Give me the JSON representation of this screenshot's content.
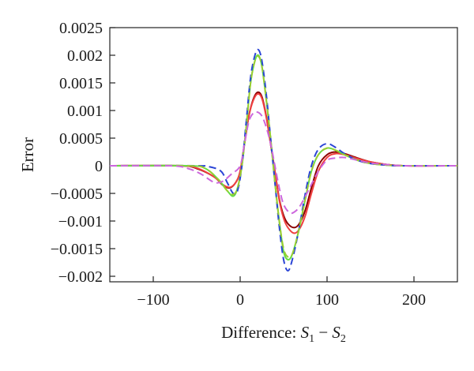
{
  "chart_data": {
    "type": "line",
    "title": "",
    "xlabel": {
      "prefix": "Difference: ",
      "var1": "S",
      "sub1": "1",
      "op": " − ",
      "var2": "S",
      "sub2": "2"
    },
    "ylabel": "Error",
    "xlim": [
      -150,
      250
    ],
    "ylim": [
      -0.0021,
      0.0025
    ],
    "x_ticks": [
      -100,
      0,
      100,
      200
    ],
    "x_tick_labels": [
      "−100",
      "0",
      "100",
      "200"
    ],
    "y_ticks": [
      0.0025,
      0.002,
      0.0015,
      0.001,
      0.0005,
      0,
      -0.0005,
      -0.001,
      -0.0015,
      -0.002
    ],
    "y_tick_labels": [
      "0.0025",
      "0.002",
      "0.0015",
      "0.001",
      "0.0005",
      "0",
      "−0.0005",
      "−0.001",
      "−0.0015",
      "−0.002"
    ],
    "grid": false,
    "series": [
      {
        "color": "#8b0000",
        "dash": "",
        "width": 2,
        "points": [
          [
            -150,
            0
          ],
          [
            -70,
            0
          ],
          [
            -50,
            -5e-05
          ],
          [
            -30,
            -0.0002
          ],
          [
            -20,
            -0.00035
          ],
          [
            -12,
            -0.0004
          ],
          [
            -5,
            -0.0003
          ],
          [
            0,
            -0.0001
          ],
          [
            5,
            0.0004
          ],
          [
            10,
            0.0009
          ],
          [
            15,
            0.0012
          ],
          [
            20,
            0.00133
          ],
          [
            25,
            0.00125
          ],
          [
            30,
            0.0009
          ],
          [
            35,
            0.0004
          ],
          [
            40,
            -0.0001
          ],
          [
            45,
            -0.0006
          ],
          [
            50,
            -0.0009
          ],
          [
            55,
            -0.00105
          ],
          [
            62,
            -0.00112
          ],
          [
            68,
            -0.00105
          ],
          [
            75,
            -0.0008
          ],
          [
            82,
            -0.0004
          ],
          [
            90,
            0
          ],
          [
            100,
            0.0002
          ],
          [
            110,
            0.00025
          ],
          [
            120,
            0.00022
          ],
          [
            135,
            0.00014
          ],
          [
            150,
            7e-05
          ],
          [
            170,
            2e-05
          ],
          [
            190,
            0
          ],
          [
            250,
            0
          ]
        ]
      },
      {
        "color": "#f04040",
        "dash": "",
        "width": 2,
        "points": [
          [
            -150,
            0
          ],
          [
            -70,
            0
          ],
          [
            -50,
            -4e-05
          ],
          [
            -30,
            -0.0002
          ],
          [
            -20,
            -0.00034
          ],
          [
            -12,
            -0.00039
          ],
          [
            -5,
            -0.0003
          ],
          [
            0,
            -0.0001
          ],
          [
            5,
            0.0004
          ],
          [
            10,
            0.0009
          ],
          [
            15,
            0.00118
          ],
          [
            20,
            0.0013
          ],
          [
            25,
            0.00122
          ],
          [
            30,
            0.00088
          ],
          [
            35,
            0.0004
          ],
          [
            40,
            -0.0001
          ],
          [
            45,
            -0.00062
          ],
          [
            50,
            -0.00095
          ],
          [
            55,
            -0.00112
          ],
          [
            62,
            -0.00122
          ],
          [
            68,
            -0.00115
          ],
          [
            75,
            -0.0009
          ],
          [
            82,
            -0.0005
          ],
          [
            90,
            -0.0001
          ],
          [
            100,
            0.00015
          ],
          [
            110,
            0.00022
          ],
          [
            120,
            0.0002
          ],
          [
            135,
            0.00013
          ],
          [
            150,
            7e-05
          ],
          [
            170,
            2e-05
          ],
          [
            190,
            0
          ],
          [
            250,
            0
          ]
        ]
      },
      {
        "color": "#66dd44",
        "dash": "",
        "width": 2,
        "points": [
          [
            -150,
            0
          ],
          [
            -60,
            0
          ],
          [
            -40,
            -5e-05
          ],
          [
            -25,
            -0.00025
          ],
          [
            -15,
            -0.00045
          ],
          [
            -8,
            -0.00055
          ],
          [
            -3,
            -0.0004
          ],
          [
            2,
            0
          ],
          [
            7,
            0.0007
          ],
          [
            12,
            0.0015
          ],
          [
            17,
            0.0019
          ],
          [
            21,
            0.002
          ],
          [
            25,
            0.0018
          ],
          [
            30,
            0.0012
          ],
          [
            35,
            0.0005
          ],
          [
            40,
            -0.0003
          ],
          [
            45,
            -0.001
          ],
          [
            50,
            -0.00155
          ],
          [
            55,
            -0.0017
          ],
          [
            60,
            -0.0016
          ],
          [
            67,
            -0.0012
          ],
          [
            75,
            -0.0006
          ],
          [
            82,
            -0.0001
          ],
          [
            90,
            0.0002
          ],
          [
            100,
            0.00032
          ],
          [
            110,
            0.00028
          ],
          [
            120,
            0.0002
          ],
          [
            135,
            0.0001
          ],
          [
            150,
            4e-05
          ],
          [
            170,
            1e-05
          ],
          [
            190,
            0
          ],
          [
            250,
            0
          ]
        ]
      },
      {
        "color": "#2b45d6",
        "dash": "9 5",
        "width": 2,
        "points": [
          [
            -150,
            0
          ],
          [
            -50,
            0
          ],
          [
            -35,
            -2e-05
          ],
          [
            -22,
            -0.0001
          ],
          [
            -15,
            -0.0003
          ],
          [
            -8,
            -0.0005
          ],
          [
            -3,
            -0.00045
          ],
          [
            2,
            0
          ],
          [
            7,
            0.0008
          ],
          [
            12,
            0.0016
          ],
          [
            17,
            0.002
          ],
          [
            21,
            0.0021
          ],
          [
            25,
            0.0019
          ],
          [
            30,
            0.0013
          ],
          [
            35,
            0.0005
          ],
          [
            40,
            -0.0003
          ],
          [
            45,
            -0.0011
          ],
          [
            50,
            -0.0017
          ],
          [
            55,
            -0.0019
          ],
          [
            60,
            -0.0017
          ],
          [
            67,
            -0.0012
          ],
          [
            75,
            -0.0005
          ],
          [
            82,
            0
          ],
          [
            90,
            0.0003
          ],
          [
            100,
            0.0004
          ],
          [
            110,
            0.00033
          ],
          [
            120,
            0.00022
          ],
          [
            135,
            0.0001
          ],
          [
            150,
            4e-05
          ],
          [
            170,
            1e-05
          ],
          [
            190,
            0
          ],
          [
            250,
            0
          ]
        ]
      },
      {
        "color": "#9acd32",
        "dash": "9 5",
        "width": 2,
        "points": [
          [
            -150,
            0
          ],
          [
            -60,
            0
          ],
          [
            -40,
            -5e-05
          ],
          [
            -25,
            -0.00025
          ],
          [
            -15,
            -0.00045
          ],
          [
            -8,
            -0.00052
          ],
          [
            -3,
            -0.0004
          ],
          [
            2,
            0
          ],
          [
            7,
            0.0007
          ],
          [
            12,
            0.0015
          ],
          [
            17,
            0.0019
          ],
          [
            21,
            0.00198
          ],
          [
            25,
            0.0018
          ],
          [
            30,
            0.0012
          ],
          [
            35,
            0.0005
          ],
          [
            40,
            -0.0003
          ],
          [
            45,
            -0.001
          ],
          [
            50,
            -0.0015
          ],
          [
            55,
            -0.00165
          ],
          [
            60,
            -0.0016
          ],
          [
            67,
            -0.0012
          ],
          [
            75,
            -0.0006
          ],
          [
            82,
            -0.0001
          ],
          [
            90,
            0.0002
          ],
          [
            100,
            0.00032
          ],
          [
            110,
            0.00028
          ],
          [
            120,
            0.0002
          ],
          [
            135,
            0.0001
          ],
          [
            150,
            4e-05
          ],
          [
            170,
            1e-05
          ],
          [
            190,
            0
          ],
          [
            250,
            0
          ]
        ]
      },
      {
        "color": "#cc66dd",
        "dash": "9 5",
        "width": 2,
        "points": [
          [
            -150,
            0
          ],
          [
            -80,
            0
          ],
          [
            -60,
            -5e-05
          ],
          [
            -45,
            -0.00015
          ],
          [
            -30,
            -0.0003
          ],
          [
            -20,
            -0.00028
          ],
          [
            -10,
            -0.00015
          ],
          [
            0,
            0
          ],
          [
            5,
            0.0004
          ],
          [
            10,
            0.0008
          ],
          [
            15,
            0.00095
          ],
          [
            20,
            0.00097
          ],
          [
            25,
            0.0009
          ],
          [
            30,
            0.0007
          ],
          [
            35,
            0.0004
          ],
          [
            40,
            0
          ],
          [
            45,
            -0.0004
          ],
          [
            50,
            -0.0007
          ],
          [
            57,
            -0.00085
          ],
          [
            63,
            -0.00083
          ],
          [
            70,
            -0.0007
          ],
          [
            80,
            -0.0004
          ],
          [
            90,
            -0.0001
          ],
          [
            100,
            0.0001
          ],
          [
            110,
            0.00014
          ],
          [
            120,
            0.00015
          ],
          [
            135,
            0.0001
          ],
          [
            150,
            5e-05
          ],
          [
            170,
            2e-05
          ],
          [
            190,
            0
          ],
          [
            250,
            0
          ]
        ]
      }
    ]
  }
}
